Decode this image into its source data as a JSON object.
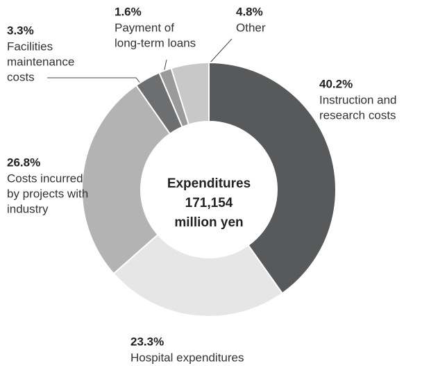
{
  "chart_data": {
    "type": "donut",
    "center_text": [
      "Expenditures",
      "171,154",
      "million yen"
    ],
    "labels": [
      [
        "Instruction and",
        "research costs"
      ],
      [
        "Hospital expenditures"
      ],
      [
        "Costs incurred",
        "by projects with",
        "industry"
      ],
      [
        "Facilities",
        "maintenance",
        "costs"
      ],
      [
        "Payment of",
        "long-term loans"
      ],
      [
        "Other"
      ]
    ],
    "values": [
      40.2,
      23.3,
      26.8,
      3.3,
      1.6,
      4.8
    ],
    "value_labels": [
      "40.2%",
      "23.3%",
      "26.8%",
      "3.3%",
      "1.6%",
      "4.8%"
    ],
    "colors": [
      "#58595b",
      "#e6e6e6",
      "#b3b3b3",
      "#6d6e70",
      "#9a9a9a",
      "#c8c8c8"
    ]
  }
}
